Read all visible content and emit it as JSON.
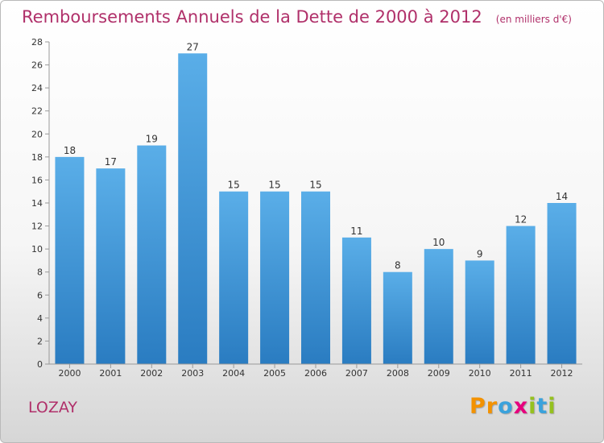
{
  "chart_data": {
    "type": "bar",
    "title": "Remboursements Annuels de la Dette de 2000 à 2012",
    "subtitle": "(en milliers d'€)",
    "categories": [
      "2000",
      "2001",
      "2002",
      "2003",
      "2004",
      "2005",
      "2006",
      "2007",
      "2008",
      "2009",
      "2010",
      "2011",
      "2012"
    ],
    "values": [
      18,
      17,
      19,
      27,
      15,
      15,
      15,
      11,
      8,
      10,
      9,
      12,
      14
    ],
    "ylim": [
      0,
      28
    ],
    "yticks": [
      0,
      2,
      4,
      6,
      8,
      10,
      12,
      14,
      16,
      18,
      20,
      22,
      24,
      26,
      28
    ],
    "grid": false,
    "colors": {
      "bar_top": "#5aaee8",
      "bar_bottom": "#2a7cc1",
      "axis": "#999999"
    }
  },
  "footer": {
    "commune": "LOZAY"
  },
  "logo": {
    "text": "Proxiti",
    "letters": [
      {
        "char": "P",
        "color": "#f39200"
      },
      {
        "char": "r",
        "color": "#f39200"
      },
      {
        "char": "o",
        "color": "#3aa2dc"
      },
      {
        "char": "x",
        "color": "#e6007e"
      },
      {
        "char": "i",
        "color": "#95c11f"
      },
      {
        "char": "t",
        "color": "#3aa2dc"
      },
      {
        "char": "i",
        "color": "#95c11f"
      }
    ]
  }
}
